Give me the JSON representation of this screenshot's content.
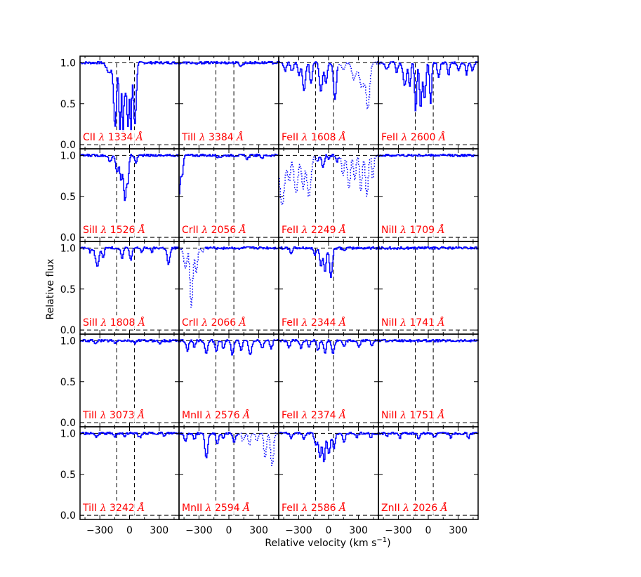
{
  "colors": {
    "spectrum": "#0000ff",
    "label": "#ff0000",
    "axis": "#000000",
    "marker": "#000000"
  },
  "chart_data": {
    "type": "line",
    "layout": "5x4-grid",
    "xlabel_prefix": "Relative velocity (km s",
    "xlabel_exp": "−1",
    "xlabel_suffix": ")",
    "ylabel": "Relative flux",
    "xlim": [
      -500,
      500
    ],
    "ylim": [
      -0.05,
      1.08
    ],
    "xticks": [
      -300,
      0,
      300
    ],
    "xtick_labels": [
      "−300",
      "0",
      "300"
    ],
    "yticks": [
      0.0,
      0.5,
      1.0
    ],
    "ytick_labels": [
      "0.0",
      "0.5",
      "1.0"
    ],
    "velocity_markers": [
      -130,
      50
    ],
    "continuum_level": 1.0,
    "zero_level": 0.0,
    "lambda_symbol": "λ",
    "angstrom_symbol": "Å",
    "panels": [
      {
        "ion": "CII",
        "wavelength": "1334",
        "style": "solid",
        "features": [
          [
            -210,
            25,
            0.12
          ],
          [
            -150,
            14,
            0.78
          ],
          [
            -100,
            10,
            0.82
          ],
          [
            -70,
            8,
            0.85
          ],
          [
            -50,
            10,
            0.35
          ],
          [
            -20,
            12,
            0.78
          ],
          [
            10,
            8,
            0.85
          ],
          [
            50,
            14,
            0.75
          ]
        ]
      },
      {
        "ion": "TiII",
        "wavelength": "3384",
        "style": "solid",
        "features": [
          [
            120,
            15,
            0.04
          ],
          [
            -330,
            10,
            0.03
          ]
        ]
      },
      {
        "ion": "FeII",
        "wavelength": "1608",
        "style": "mixed",
        "dotted_from": 100,
        "features": [
          [
            -440,
            12,
            0.1
          ],
          [
            -370,
            14,
            0.1
          ],
          [
            -300,
            12,
            0.15
          ],
          [
            -250,
            14,
            0.35
          ],
          [
            -180,
            12,
            0.25
          ],
          [
            -80,
            16,
            0.35
          ],
          [
            -30,
            12,
            0.25
          ],
          [
            60,
            14,
            0.45
          ],
          [
            140,
            20,
            0.08
          ],
          [
            250,
            20,
            0.2
          ],
          [
            330,
            25,
            0.3
          ],
          [
            390,
            18,
            0.55
          ]
        ]
      },
      {
        "ion": "FeII",
        "wavelength": "2600",
        "style": "solid",
        "features": [
          [
            -420,
            15,
            0.08
          ],
          [
            -320,
            12,
            0.12
          ],
          [
            -240,
            16,
            0.28
          ],
          [
            -190,
            10,
            0.3
          ],
          [
            -130,
            10,
            0.6
          ],
          [
            -80,
            12,
            0.55
          ],
          [
            -40,
            12,
            0.45
          ],
          [
            20,
            10,
            0.5
          ],
          [
            100,
            12,
            0.18
          ],
          [
            200,
            10,
            0.15
          ],
          [
            300,
            12,
            0.1
          ],
          [
            380,
            10,
            0.15
          ],
          [
            440,
            12,
            0.1
          ]
        ]
      },
      {
        "ion": "SiII",
        "wavelength": "1526",
        "style": "solid",
        "features": [
          [
            -200,
            15,
            0.08
          ],
          [
            -130,
            14,
            0.2
          ],
          [
            -90,
            12,
            0.3
          ],
          [
            -50,
            14,
            0.55
          ],
          [
            -20,
            10,
            0.3
          ],
          [
            60,
            10,
            0.1
          ]
        ]
      },
      {
        "ion": "CrII",
        "wavelength": "2056",
        "style": "solid",
        "features": [
          [
            -510,
            18,
            0.55
          ],
          [
            -470,
            10,
            0.2
          ],
          [
            -100,
            20,
            0.02
          ],
          [
            180,
            15,
            0.04
          ],
          [
            330,
            12,
            0.03
          ]
        ]
      },
      {
        "ion": "FeII",
        "wavelength": "2249",
        "style": "mixed",
        "dotted_from": 110,
        "dotted_to": -120,
        "features": [
          [
            -470,
            25,
            0.6
          ],
          [
            -400,
            15,
            0.3
          ],
          [
            -330,
            20,
            0.45
          ],
          [
            -260,
            15,
            0.4
          ],
          [
            -200,
            20,
            0.5
          ],
          [
            -120,
            12,
            0.08
          ],
          [
            -60,
            12,
            0.15
          ],
          [
            0,
            10,
            0.05
          ],
          [
            80,
            12,
            0.08
          ],
          [
            140,
            12,
            0.25
          ],
          [
            200,
            15,
            0.4
          ],
          [
            260,
            12,
            0.3
          ],
          [
            320,
            12,
            0.45
          ],
          [
            380,
            14,
            0.5
          ],
          [
            440,
            10,
            0.3
          ]
        ]
      },
      {
        "ion": "NiII",
        "wavelength": "1709",
        "style": "solid",
        "features": []
      },
      {
        "ion": "SiII",
        "wavelength": "1808",
        "style": "solid",
        "features": [
          [
            -400,
            12,
            0.05
          ],
          [
            -330,
            18,
            0.22
          ],
          [
            -270,
            10,
            0.12
          ],
          [
            -80,
            12,
            0.12
          ],
          [
            10,
            12,
            0.15
          ],
          [
            120,
            10,
            0.05
          ],
          [
            220,
            10,
            0.05
          ],
          [
            390,
            14,
            0.2
          ]
        ]
      },
      {
        "ion": "CrII",
        "wavelength": "2066",
        "style": "mixed",
        "dotted_to": -250,
        "features": [
          [
            -440,
            14,
            0.25
          ],
          [
            -380,
            14,
            0.72
          ],
          [
            -330,
            12,
            0.3
          ],
          [
            -270,
            10,
            0.05
          ],
          [
            100,
            10,
            0.02
          ]
        ]
      },
      {
        "ion": "FeII",
        "wavelength": "2344",
        "style": "solid",
        "features": [
          [
            -380,
            12,
            0.06
          ],
          [
            -140,
            14,
            0.08
          ],
          [
            -80,
            12,
            0.22
          ],
          [
            -40,
            12,
            0.3
          ],
          [
            20,
            14,
            0.35
          ],
          [
            150,
            10,
            0.04
          ]
        ]
      },
      {
        "ion": "NiII",
        "wavelength": "1741",
        "style": "solid",
        "features": []
      },
      {
        "ion": "TiII",
        "wavelength": "3073",
        "style": "solid",
        "features": [
          [
            -350,
            10,
            0.03
          ],
          [
            -150,
            10,
            0.04
          ],
          [
            50,
            10,
            0.03
          ],
          [
            300,
            10,
            0.03
          ]
        ]
      },
      {
        "ion": "MnII",
        "wavelength": "2576",
        "style": "solid",
        "features": [
          [
            -420,
            12,
            0.12
          ],
          [
            -350,
            10,
            0.08
          ],
          [
            -230,
            14,
            0.15
          ],
          [
            -130,
            12,
            0.12
          ],
          [
            -60,
            10,
            0.1
          ],
          [
            30,
            12,
            0.18
          ],
          [
            120,
            12,
            0.12
          ],
          [
            210,
            14,
            0.18
          ],
          [
            330,
            12,
            0.1
          ],
          [
            420,
            12,
            0.1
          ]
        ]
      },
      {
        "ion": "FeII",
        "wavelength": "2374",
        "style": "solid",
        "features": [
          [
            -400,
            12,
            0.08
          ],
          [
            -280,
            12,
            0.1
          ],
          [
            -200,
            10,
            0.08
          ],
          [
            -110,
            12,
            0.12
          ],
          [
            -40,
            12,
            0.15
          ],
          [
            40,
            14,
            0.15
          ],
          [
            150,
            12,
            0.08
          ],
          [
            300,
            12,
            0.08
          ],
          [
            430,
            10,
            0.06
          ]
        ]
      },
      {
        "ion": "NiII",
        "wavelength": "1751",
        "style": "solid",
        "features": []
      },
      {
        "ion": "TiII",
        "wavelength": "3242",
        "style": "solid",
        "features": [
          [
            -340,
            12,
            0.05
          ],
          [
            -150,
            10,
            0.04
          ],
          [
            -50,
            10,
            0.03
          ],
          [
            100,
            14,
            0.05
          ],
          [
            350,
            10,
            0.04
          ]
        ]
      },
      {
        "ion": "MnII",
        "wavelength": "2594",
        "style": "mixed",
        "dotted_from": 100,
        "features": [
          [
            -440,
            12,
            0.1
          ],
          [
            -350,
            10,
            0.08
          ],
          [
            -230,
            14,
            0.3
          ],
          [
            -120,
            12,
            0.12
          ],
          [
            -60,
            10,
            0.06
          ],
          [
            50,
            12,
            0.12
          ],
          [
            140,
            12,
            0.1
          ],
          [
            200,
            12,
            0.15
          ],
          [
            280,
            12,
            0.1
          ],
          [
            360,
            12,
            0.3
          ],
          [
            430,
            14,
            0.4
          ]
        ]
      },
      {
        "ion": "FeII",
        "wavelength": "2586",
        "style": "solid",
        "features": [
          [
            -380,
            12,
            0.06
          ],
          [
            -250,
            10,
            0.08
          ],
          [
            -130,
            14,
            0.15
          ],
          [
            -90,
            12,
            0.3
          ],
          [
            -50,
            12,
            0.35
          ],
          [
            0,
            14,
            0.25
          ],
          [
            50,
            12,
            0.18
          ],
          [
            150,
            12,
            0.12
          ],
          [
            280,
            10,
            0.06
          ],
          [
            420,
            10,
            0.05
          ]
        ]
      },
      {
        "ion": "ZnII",
        "wavelength": "2026",
        "style": "solid",
        "features": [
          [
            -420,
            10,
            0.04
          ],
          [
            -290,
            10,
            0.06
          ],
          [
            -100,
            10,
            0.08
          ],
          [
            60,
            10,
            0.05
          ],
          [
            220,
            10,
            0.05
          ],
          [
            400,
            10,
            0.06
          ]
        ]
      }
    ]
  }
}
